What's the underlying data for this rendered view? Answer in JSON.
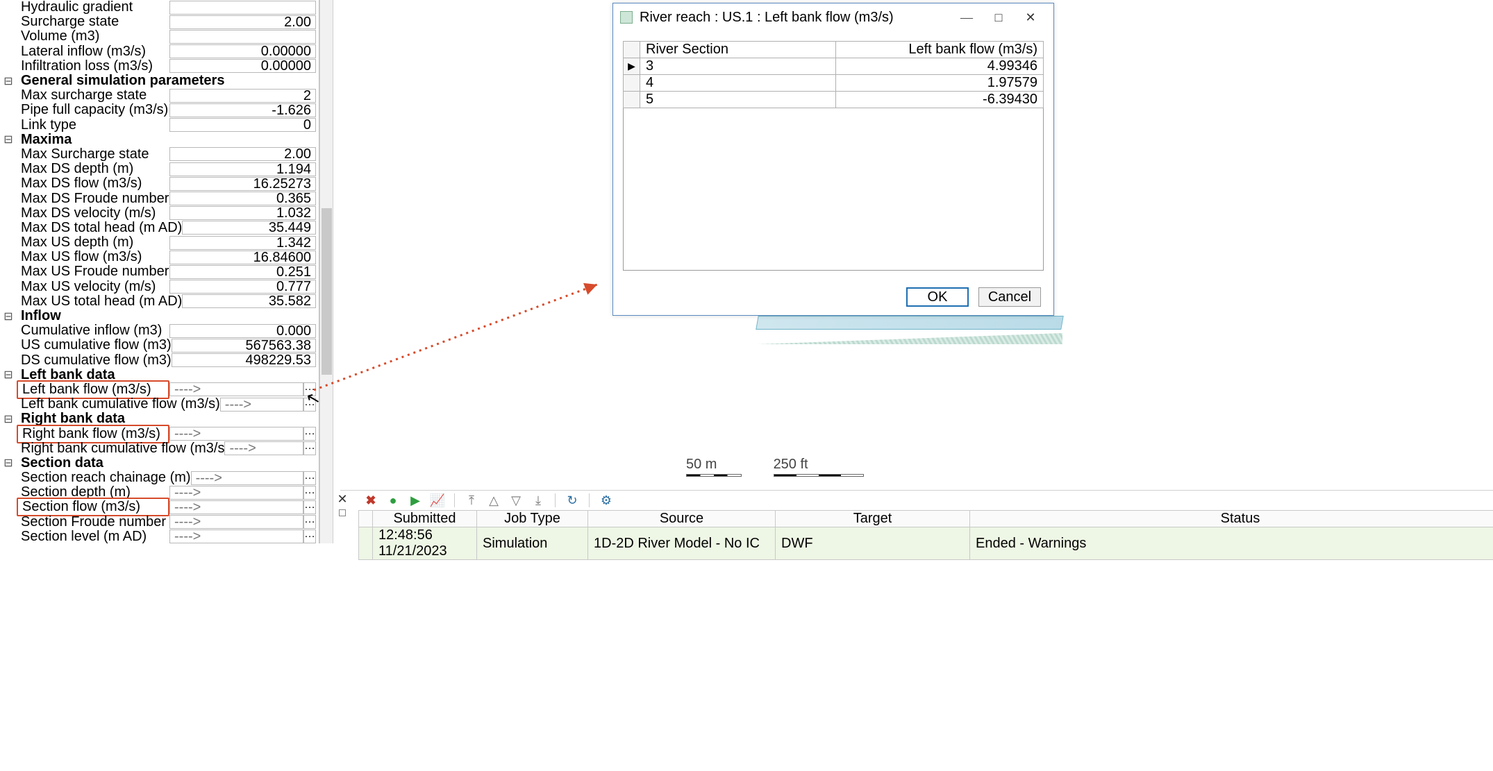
{
  "panel": {
    "rows": [
      {
        "label": "Hydraulic gradient",
        "value": "",
        "type": "val"
      },
      {
        "label": "Surcharge state",
        "value": "2.00",
        "type": "val"
      },
      {
        "label": "Volume (m3)",
        "value": "",
        "type": "val"
      },
      {
        "label": "Lateral inflow (m3/s)",
        "value": "0.00000",
        "type": "val"
      },
      {
        "label": "Infiltration loss (m3/s)",
        "value": "0.00000",
        "type": "val"
      },
      {
        "label": "General simulation parameters",
        "type": "header"
      },
      {
        "label": "Max surcharge state",
        "value": "2",
        "type": "val"
      },
      {
        "label": "Pipe full capacity (m3/s)",
        "value": "-1.626",
        "type": "val"
      },
      {
        "label": "Link type",
        "value": "0",
        "type": "val"
      },
      {
        "label": "Maxima",
        "type": "header"
      },
      {
        "label": "Max Surcharge state",
        "value": "2.00",
        "type": "val"
      },
      {
        "label": "Max DS depth (m)",
        "value": "1.194",
        "type": "val"
      },
      {
        "label": "Max DS flow (m3/s)",
        "value": "16.25273",
        "type": "val"
      },
      {
        "label": "Max DS Froude number",
        "value": "0.365",
        "type": "val"
      },
      {
        "label": "Max DS velocity (m/s)",
        "value": "1.032",
        "type": "val"
      },
      {
        "label": "Max DS total head (m AD)",
        "value": "35.449",
        "type": "val"
      },
      {
        "label": "Max US depth (m)",
        "value": "1.342",
        "type": "val"
      },
      {
        "label": "Max US flow (m3/s)",
        "value": "16.84600",
        "type": "val"
      },
      {
        "label": "Max US Froude number",
        "value": "0.251",
        "type": "val"
      },
      {
        "label": "Max US velocity (m/s)",
        "value": "0.777",
        "type": "val"
      },
      {
        "label": "Max US total head (m AD)",
        "value": "35.582",
        "type": "val"
      },
      {
        "label": "Inflow",
        "type": "header"
      },
      {
        "label": "Cumulative inflow (m3)",
        "value": "0.000",
        "type": "val"
      },
      {
        "label": "US cumulative flow (m3)",
        "value": "567563.38",
        "type": "val"
      },
      {
        "label": "DS cumulative flow (m3)",
        "value": "498229.53",
        "type": "val"
      },
      {
        "label": "Left bank data",
        "type": "header"
      },
      {
        "label": "Left bank flow (m3/s)",
        "value": "---->",
        "type": "arrow",
        "hl": true,
        "ell": true
      },
      {
        "label": "Left bank cumulative flow (m3/s)",
        "value": "---->",
        "type": "arrow",
        "ell": true
      },
      {
        "label": "Right bank data",
        "type": "header"
      },
      {
        "label": "Right bank flow (m3/s)",
        "value": "---->",
        "type": "arrow",
        "hl": true,
        "ell": true
      },
      {
        "label": "Right bank cumulative flow (m3/s",
        "value": "---->",
        "type": "arrow",
        "ell": true
      },
      {
        "label": "Section data",
        "type": "header"
      },
      {
        "label": "Section reach chainage (m)",
        "value": "---->",
        "type": "arrow",
        "ell": true
      },
      {
        "label": "Section depth (m)",
        "value": "---->",
        "type": "arrow",
        "ell": true
      },
      {
        "label": "Section flow (m3/s)",
        "value": "---->",
        "type": "arrow",
        "hl": true,
        "ell": true
      },
      {
        "label": "Section Froude number",
        "value": "---->",
        "type": "arrow",
        "ell": true
      },
      {
        "label": "Section level (m AD)",
        "value": "---->",
        "type": "arrow",
        "ell": true
      }
    ]
  },
  "scale": {
    "metric": "50 m",
    "imperial": "250 ft"
  },
  "dialog": {
    "title": "River reach : US.1 : Left bank flow (m3/s)",
    "cols": [
      "River Section",
      "Left bank flow (m3/s)"
    ],
    "rows": [
      {
        "ptr": true,
        "rs": "3",
        "lv": "4.99346"
      },
      {
        "ptr": false,
        "rs": "4",
        "lv": "1.97579"
      },
      {
        "ptr": false,
        "rs": "5",
        "lv": "-6.39430"
      }
    ],
    "ok": "OK",
    "cancel": "Cancel"
  },
  "jobs": {
    "cols": [
      "Submitted",
      "Job Type",
      "Source",
      "Target",
      "Status"
    ],
    "row": {
      "submitted": "12:48:56 11/21/2023",
      "type": "Simulation",
      "source": "1D-2D River Model - No IC",
      "target": "DWF",
      "status": "Ended - Warnings"
    }
  }
}
